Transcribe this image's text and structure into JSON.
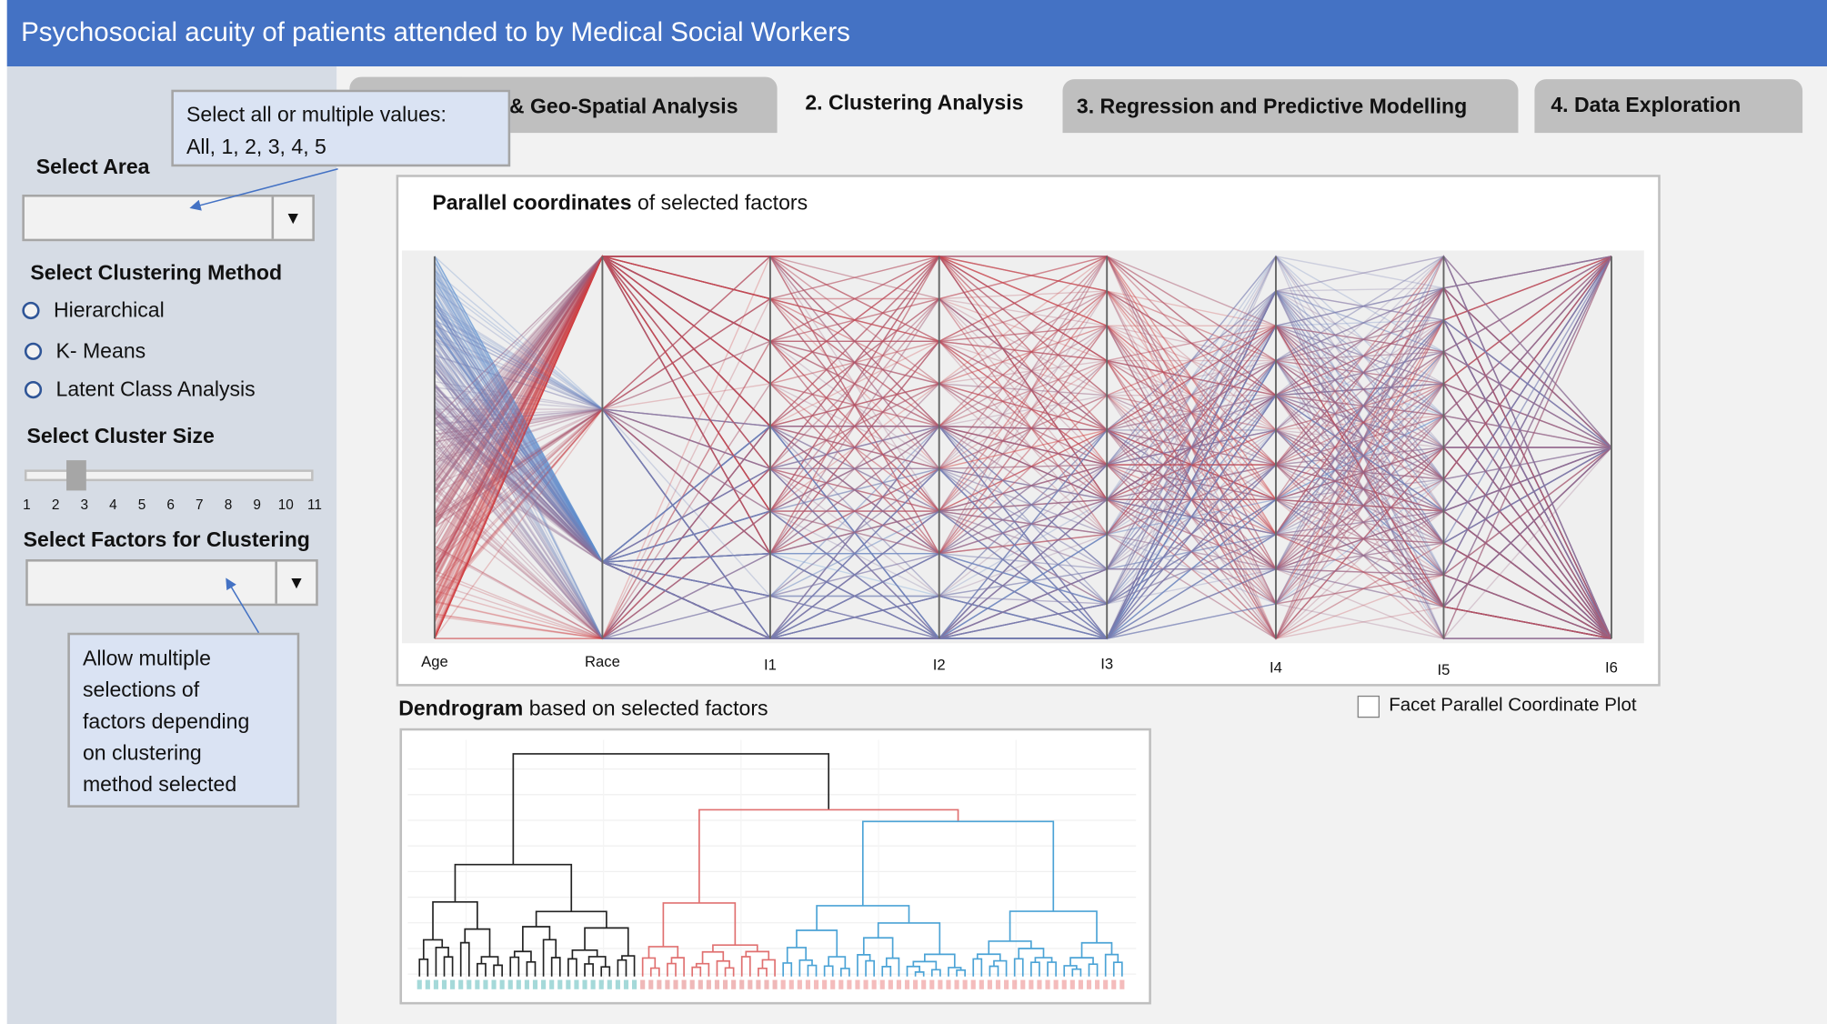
{
  "header": {
    "title": "Psychosocial acuity of patients attended to by Medical Social Workers"
  },
  "tabs": [
    {
      "label": "& Geo-Spatial Analysis",
      "active": false
    },
    {
      "label": "2. Clustering Analysis",
      "active": true
    },
    {
      "label": "3. Regression and Predictive Modelling",
      "active": false
    },
    {
      "label": "4. Data Exploration",
      "active": false
    }
  ],
  "tooltip": {
    "line1": "Select all or multiple values:",
    "line2": "All, 1, 2, 3, 4, 5"
  },
  "sidebar": {
    "area_label": "Select Area",
    "area_value": "",
    "method_label": "Select Clustering Method",
    "methods": [
      "Hierarchical",
      "K- Means",
      "Latent Class Analysis"
    ],
    "cluster_size_label": "Select Cluster Size",
    "slider": {
      "min": 1,
      "max": 11,
      "value": 2.7
    },
    "ticks": [
      "1",
      "2",
      "3",
      "4",
      "5",
      "6",
      "7",
      "8",
      "9",
      "10",
      "11"
    ],
    "factors_label": "Select Factors for Clustering",
    "factors_value": "",
    "note": [
      "Allow multiple",
      "selections of",
      "factors depending",
      "on clustering",
      "method selected"
    ]
  },
  "pc": {
    "title_bold": "Parallel coordinates",
    "title_rest": " of selected factors",
    "axes": [
      "Age",
      "Race",
      "I1",
      "I2",
      "I3",
      "I4",
      "I5",
      "I6"
    ],
    "colors": {
      "low": "#D63C3C",
      "high": "#5A92D6"
    }
  },
  "dendro": {
    "title_bold": "Dendrogram",
    "title_rest": " based on selected factors",
    "colors": {
      "cluster1": "#222222",
      "cluster2": "#E07070",
      "cluster3": "#4BA3D6"
    }
  },
  "facet": {
    "label": "Facet Parallel Coordinate Plot",
    "checked": false
  }
}
